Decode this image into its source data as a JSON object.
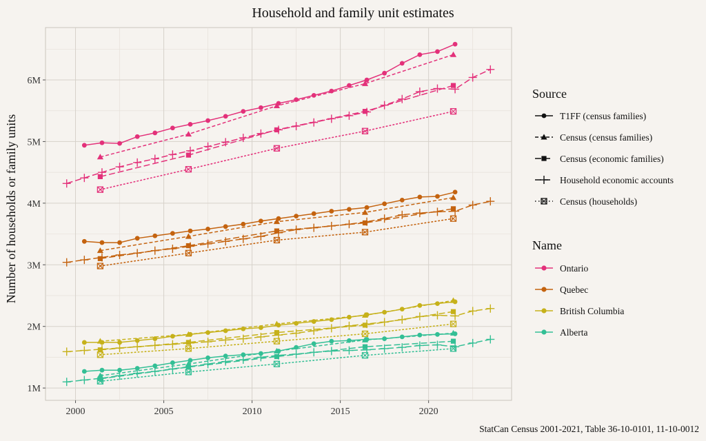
{
  "chart_data": {
    "type": "line",
    "title": "Household and family unit estimates",
    "ylabel": "Number of households or family units",
    "xlabel": "",
    "caption": "StatCan Census 2001-2021, Table 36-10-0101, 11-10-0012",
    "xlim": [
      1998.3,
      2024.7
    ],
    "ylim": [
      0.8,
      6.85
    ],
    "x_ticks": [
      2000,
      2005,
      2010,
      2015,
      2020
    ],
    "x_tick_labels": [
      "2000",
      "2005",
      "2010",
      "2015",
      "2020"
    ],
    "y_ticks": [
      1,
      2,
      3,
      4,
      5,
      6
    ],
    "y_tick_labels": [
      "1M",
      "2M",
      "3M",
      "4M",
      "5M",
      "6M"
    ],
    "y_unit": "millions",
    "grid": true,
    "legend_position": "right",
    "source_legend_title": "Source",
    "name_legend_title": "Name",
    "sources": [
      {
        "name": "T1FF (census families)",
        "line": "solid",
        "marker": "circle"
      },
      {
        "name": "Census (census families)",
        "line": "dashed",
        "marker": "triangle"
      },
      {
        "name": "Census (economic families)",
        "line": "longdash",
        "marker": "square"
      },
      {
        "name": "Household economic accounts",
        "line": "longdash",
        "marker": "plus"
      },
      {
        "name": "Census (households)",
        "line": "dotted",
        "marker": "boxx"
      }
    ],
    "regions": [
      {
        "name": "Ontario",
        "color": "#e3317a"
      },
      {
        "name": "Quebec",
        "color": "#c4630f"
      },
      {
        "name": "British Columbia",
        "color": "#c6b11a"
      },
      {
        "name": "Alberta",
        "color": "#33bf95"
      }
    ],
    "series": [
      {
        "region": "Ontario",
        "source": "T1FF (census families)",
        "x": [
          2000.5,
          2001.5,
          2002.5,
          2003.5,
          2004.5,
          2005.5,
          2006.5,
          2007.5,
          2008.5,
          2009.5,
          2010.5,
          2011.5,
          2012.5,
          2013.5,
          2014.5,
          2015.5,
          2016.5,
          2017.5,
          2018.5,
          2019.5,
          2020.5,
          2021.5
        ],
        "values": [
          4.94,
          4.98,
          4.97,
          5.08,
          5.14,
          5.22,
          5.28,
          5.34,
          5.41,
          5.49,
          5.55,
          5.62,
          5.68,
          5.75,
          5.82,
          5.91,
          6.0,
          6.11,
          6.27,
          6.41,
          6.46,
          6.58
        ]
      },
      {
        "region": "Ontario",
        "source": "Census (census families)",
        "x": [
          2001.4,
          2006.4,
          2011.4,
          2016.4,
          2021.4
        ],
        "values": [
          4.75,
          5.12,
          5.58,
          5.94,
          6.41
        ]
      },
      {
        "region": "Ontario",
        "source": "Census (economic families)",
        "x": [
          2001.4,
          2006.4,
          2011.4,
          2016.4,
          2021.4
        ],
        "values": [
          4.43,
          4.78,
          5.19,
          5.49,
          5.91
        ]
      },
      {
        "region": "Ontario",
        "source": "Household economic accounts",
        "x": [
          1999.5,
          2000.5,
          2001.5,
          2002.5,
          2003.5,
          2004.5,
          2005.5,
          2006.5,
          2007.5,
          2008.5,
          2009.5,
          2010.5,
          2011.5,
          2012.5,
          2013.5,
          2014.5,
          2015.5,
          2016.5,
          2017.5,
          2018.5,
          2019.5,
          2020.5,
          2021.5,
          2022.5,
          2023.5
        ],
        "values": [
          4.32,
          4.41,
          4.5,
          4.59,
          4.66,
          4.72,
          4.79,
          4.85,
          4.92,
          4.99,
          5.06,
          5.13,
          5.19,
          5.25,
          5.31,
          5.37,
          5.42,
          5.48,
          5.59,
          5.69,
          5.81,
          5.86,
          5.85,
          6.04,
          6.17
        ]
      },
      {
        "region": "Ontario",
        "source": "Census (households)",
        "x": [
          2001.4,
          2006.4,
          2011.4,
          2016.4,
          2021.4
        ],
        "values": [
          4.22,
          4.55,
          4.89,
          5.17,
          5.49
        ]
      },
      {
        "region": "Quebec",
        "source": "T1FF (census families)",
        "x": [
          2000.5,
          2001.5,
          2002.5,
          2003.5,
          2004.5,
          2005.5,
          2006.5,
          2007.5,
          2008.5,
          2009.5,
          2010.5,
          2011.5,
          2012.5,
          2013.5,
          2014.5,
          2015.5,
          2016.5,
          2017.5,
          2018.5,
          2019.5,
          2020.5,
          2021.5
        ],
        "values": [
          3.38,
          3.36,
          3.36,
          3.43,
          3.47,
          3.51,
          3.55,
          3.58,
          3.62,
          3.66,
          3.71,
          3.75,
          3.79,
          3.83,
          3.87,
          3.9,
          3.93,
          3.99,
          4.05,
          4.1,
          4.11,
          4.18
        ]
      },
      {
        "region": "Quebec",
        "source": "Census (census families)",
        "x": [
          2001.4,
          2006.4,
          2011.4,
          2016.4,
          2021.4
        ],
        "values": [
          3.23,
          3.46,
          3.7,
          3.85,
          4.09
        ]
      },
      {
        "region": "Quebec",
        "source": "Census (economic families)",
        "x": [
          2001.4,
          2006.4,
          2011.4,
          2016.4,
          2021.4
        ],
        "values": [
          3.1,
          3.31,
          3.55,
          3.68,
          3.91
        ]
      },
      {
        "region": "Quebec",
        "source": "Household economic accounts",
        "x": [
          1999.5,
          2000.5,
          2001.5,
          2002.5,
          2003.5,
          2004.5,
          2005.5,
          2006.5,
          2007.5,
          2008.5,
          2009.5,
          2010.5,
          2011.5,
          2012.5,
          2013.5,
          2014.5,
          2015.5,
          2016.5,
          2017.5,
          2018.5,
          2019.5,
          2020.5,
          2021.5,
          2022.5,
          2023.5
        ],
        "values": [
          3.04,
          3.08,
          3.12,
          3.16,
          3.19,
          3.23,
          3.26,
          3.3,
          3.34,
          3.38,
          3.42,
          3.46,
          3.52,
          3.57,
          3.6,
          3.63,
          3.66,
          3.7,
          3.75,
          3.81,
          3.84,
          3.86,
          3.87,
          3.97,
          4.03
        ]
      },
      {
        "region": "Quebec",
        "source": "Census (households)",
        "x": [
          2001.4,
          2006.4,
          2011.4,
          2016.4,
          2021.4
        ],
        "values": [
          2.98,
          3.19,
          3.4,
          3.53,
          3.75
        ]
      },
      {
        "region": "British Columbia",
        "source": "T1FF (census families)",
        "x": [
          2000.5,
          2001.5,
          2002.5,
          2003.5,
          2004.5,
          2005.5,
          2006.5,
          2007.5,
          2008.5,
          2009.5,
          2010.5,
          2011.5,
          2012.5,
          2013.5,
          2014.5,
          2015.5,
          2016.5,
          2017.5,
          2018.5,
          2019.5,
          2020.5,
          2021.5
        ],
        "values": [
          1.74,
          1.74,
          1.74,
          1.77,
          1.8,
          1.84,
          1.87,
          1.9,
          1.93,
          1.96,
          1.98,
          2.02,
          2.05,
          2.08,
          2.11,
          2.15,
          2.19,
          2.23,
          2.28,
          2.34,
          2.37,
          2.4
        ]
      },
      {
        "region": "British Columbia",
        "source": "Census (census families)",
        "x": [
          2001.4,
          2006.4,
          2011.4,
          2016.4,
          2021.4
        ],
        "values": [
          1.76,
          1.87,
          2.04,
          2.18,
          2.42
        ]
      },
      {
        "region": "British Columbia",
        "source": "Census (economic families)",
        "x": [
          2001.4,
          2006.4,
          2011.4,
          2016.4,
          2021.4
        ],
        "values": [
          1.62,
          1.74,
          1.9,
          2.02,
          2.24
        ]
      },
      {
        "region": "British Columbia",
        "source": "Household economic accounts",
        "x": [
          1999.5,
          2000.5,
          2001.5,
          2002.5,
          2003.5,
          2004.5,
          2005.5,
          2006.5,
          2007.5,
          2008.5,
          2009.5,
          2010.5,
          2011.5,
          2012.5,
          2013.5,
          2014.5,
          2015.5,
          2016.5,
          2017.5,
          2018.5,
          2019.5,
          2020.5,
          2021.5,
          2022.5,
          2023.5
        ],
        "values": [
          1.59,
          1.61,
          1.63,
          1.65,
          1.67,
          1.69,
          1.71,
          1.73,
          1.75,
          1.78,
          1.8,
          1.83,
          1.86,
          1.89,
          1.93,
          1.97,
          2.01,
          2.04,
          2.07,
          2.11,
          2.16,
          2.18,
          2.17,
          2.25,
          2.29
        ]
      },
      {
        "region": "British Columbia",
        "source": "Census (households)",
        "x": [
          2001.4,
          2006.4,
          2011.4,
          2016.4,
          2021.4
        ],
        "values": [
          1.54,
          1.64,
          1.76,
          1.88,
          2.04
        ]
      },
      {
        "region": "Alberta",
        "source": "T1FF (census families)",
        "x": [
          2000.5,
          2001.5,
          2002.5,
          2003.5,
          2004.5,
          2005.5,
          2006.5,
          2007.5,
          2008.5,
          2009.5,
          2010.5,
          2011.5,
          2012.5,
          2013.5,
          2014.5,
          2015.5,
          2016.5,
          2017.5,
          2018.5,
          2019.5,
          2020.5,
          2021.5
        ],
        "values": [
          1.27,
          1.29,
          1.29,
          1.32,
          1.36,
          1.41,
          1.45,
          1.49,
          1.52,
          1.54,
          1.56,
          1.6,
          1.66,
          1.72,
          1.76,
          1.77,
          1.79,
          1.8,
          1.83,
          1.86,
          1.87,
          1.88
        ]
      },
      {
        "region": "Alberta",
        "source": "Census (census families)",
        "x": [
          2001.4,
          2006.4,
          2011.4,
          2016.4,
          2021.4
        ],
        "values": [
          1.2,
          1.39,
          1.6,
          1.78,
          1.89
        ]
      },
      {
        "region": "Alberta",
        "source": "Census (economic families)",
        "x": [
          2001.4,
          2006.4,
          2011.4,
          2016.4,
          2021.4
        ],
        "values": [
          1.15,
          1.34,
          1.51,
          1.67,
          1.76
        ]
      },
      {
        "region": "Alberta",
        "source": "Household economic accounts",
        "x": [
          1999.5,
          2000.5,
          2001.5,
          2002.5,
          2003.5,
          2004.5,
          2005.5,
          2006.5,
          2007.5,
          2008.5,
          2009.5,
          2010.5,
          2011.5,
          2012.5,
          2013.5,
          2014.5,
          2015.5,
          2016.5,
          2017.5,
          2018.5,
          2019.5,
          2020.5,
          2021.5,
          2022.5,
          2023.5
        ],
        "values": [
          1.1,
          1.13,
          1.16,
          1.2,
          1.24,
          1.27,
          1.31,
          1.35,
          1.39,
          1.43,
          1.46,
          1.5,
          1.53,
          1.55,
          1.58,
          1.6,
          1.61,
          1.62,
          1.64,
          1.66,
          1.69,
          1.7,
          1.67,
          1.73,
          1.79
        ]
      },
      {
        "region": "Alberta",
        "source": "Census (households)",
        "x": [
          2001.4,
          2006.4,
          2011.4,
          2016.4,
          2021.4
        ],
        "values": [
          1.11,
          1.26,
          1.39,
          1.53,
          1.64
        ]
      }
    ]
  }
}
